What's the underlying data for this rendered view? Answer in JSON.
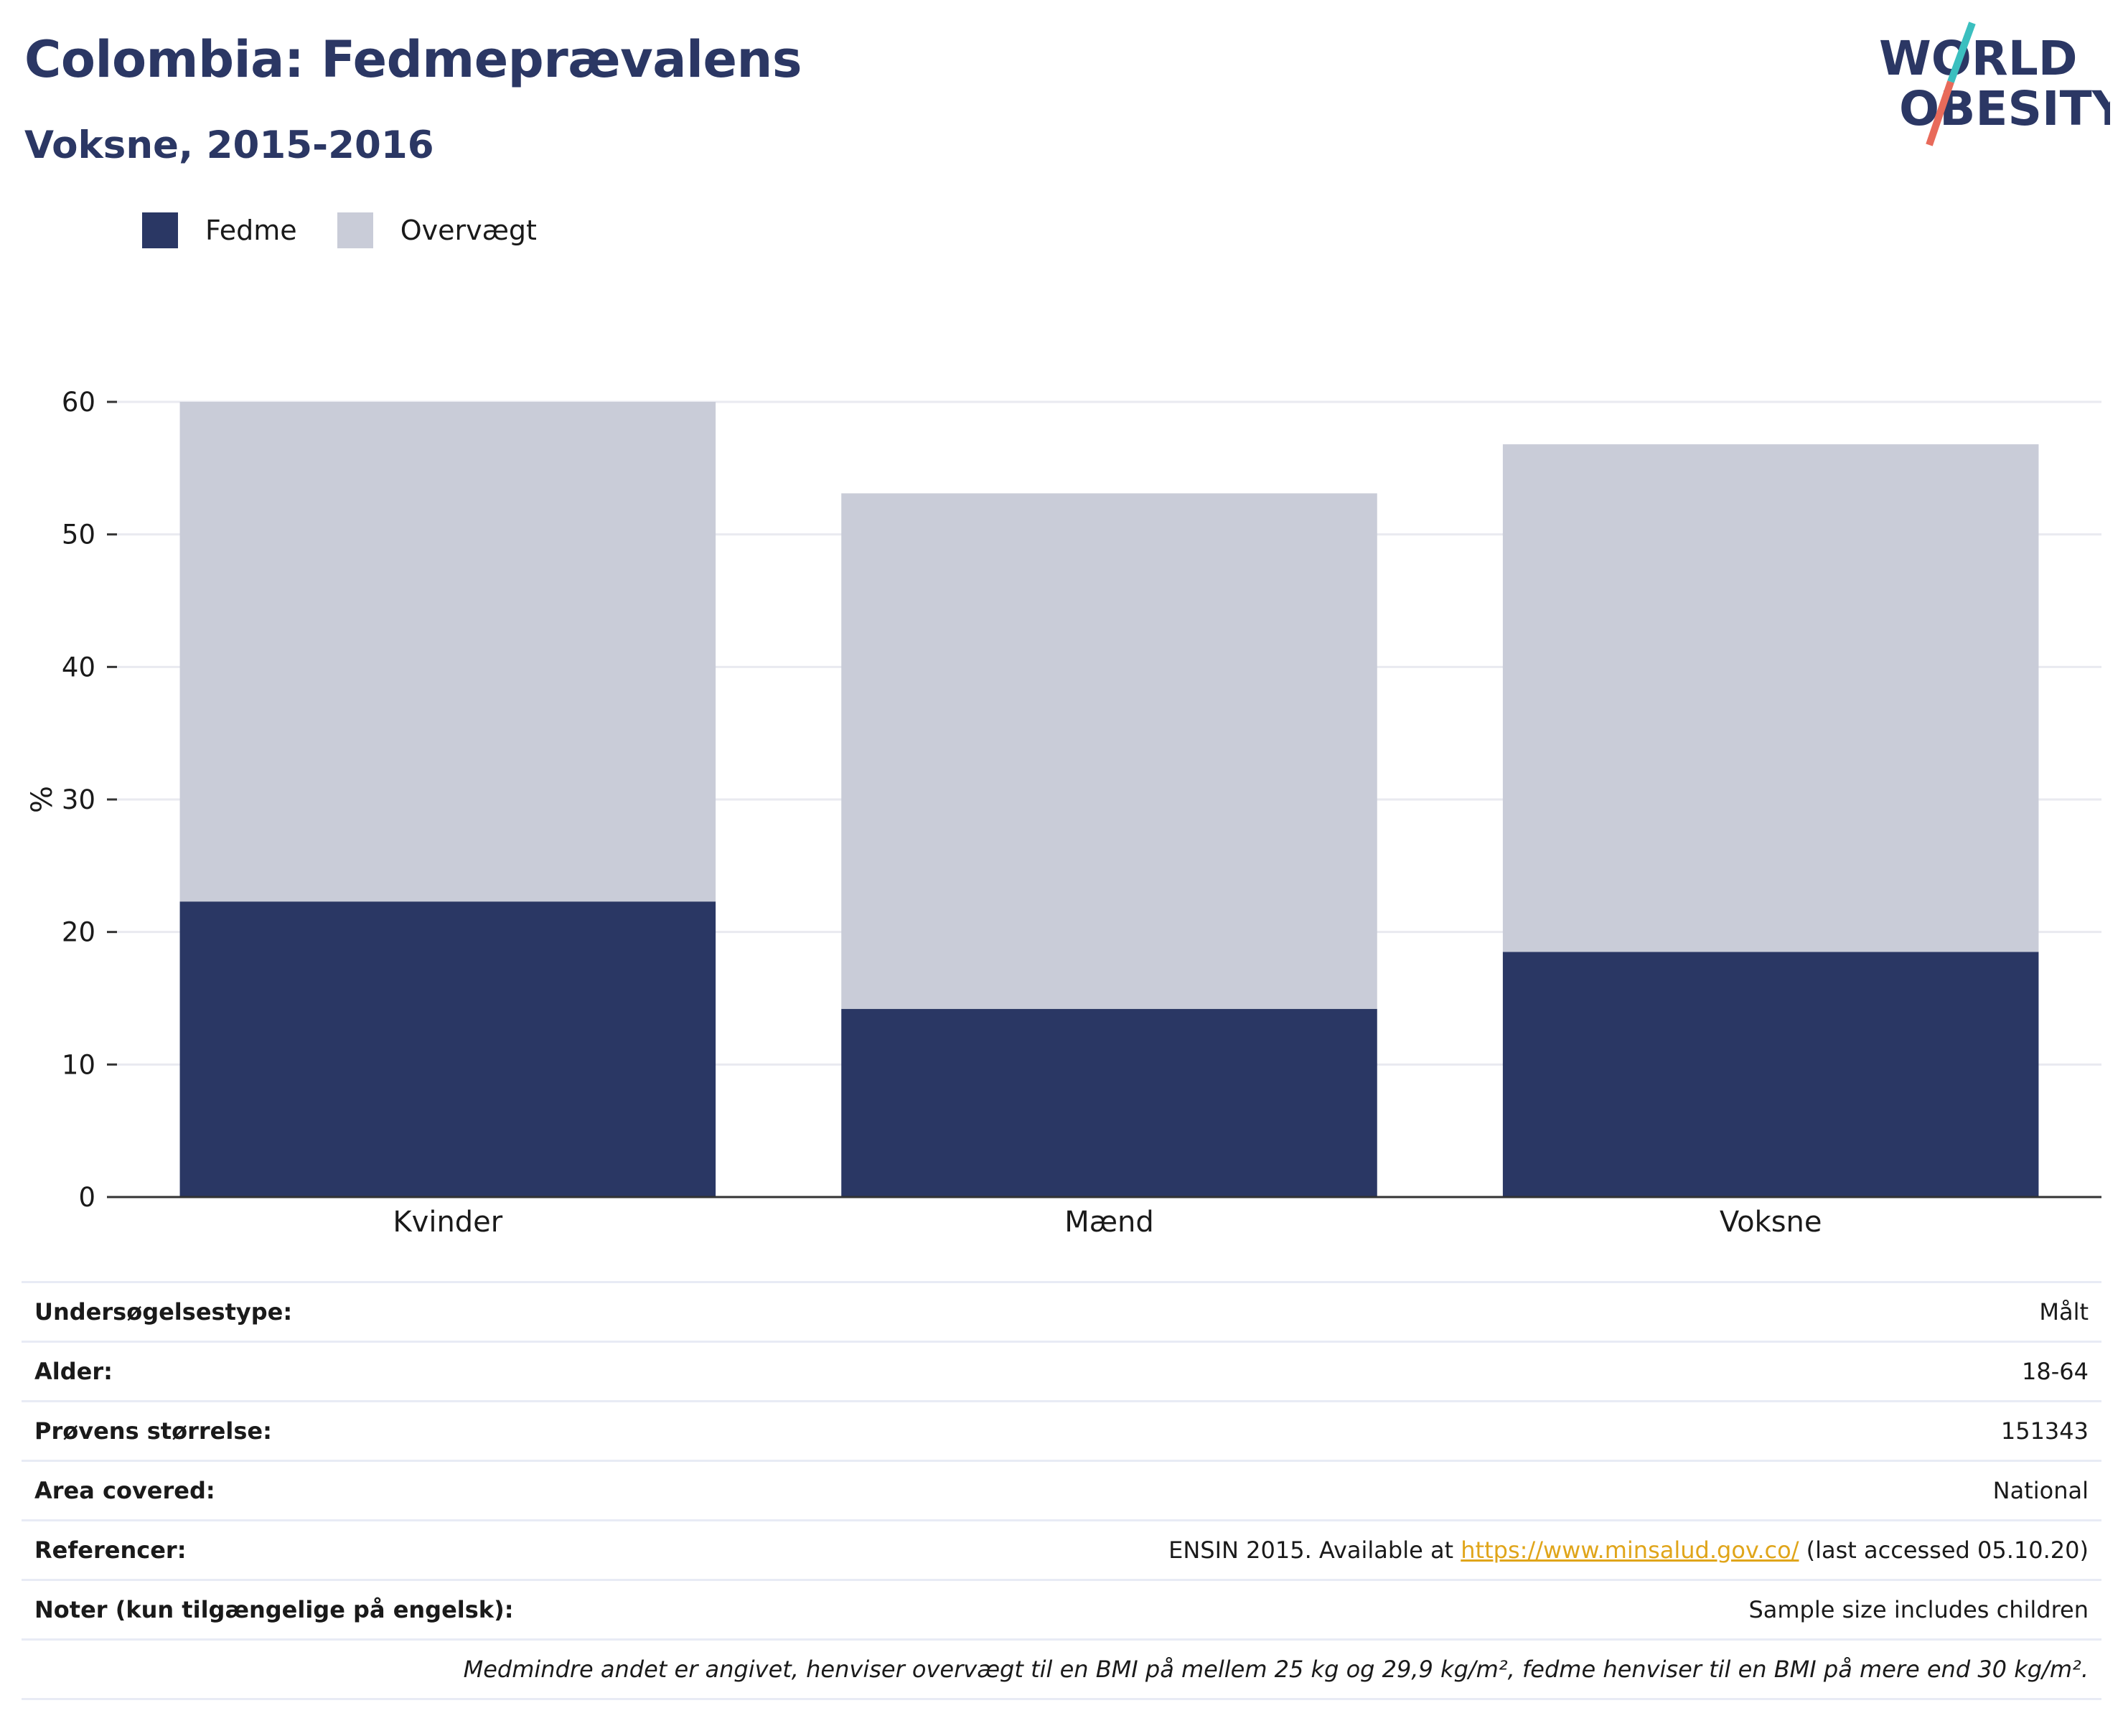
{
  "header": {
    "title": "Colombia: Fedmeprævalens",
    "subtitle": "Voksne, 2015-2016"
  },
  "logo": {
    "line1": "WORLD",
    "line2": "OBESITY",
    "text_color": "#2b3764",
    "slash_top_color": "#3bbfbf",
    "slash_bottom_color": "#e86a5a"
  },
  "colors": {
    "fedme": "#2a3764",
    "overvaegt": "#c9ccd8",
    "grid": "#e9eaf0",
    "axis": "#333333"
  },
  "chart_data": {
    "type": "bar",
    "stacked": true,
    "categories": [
      "Kvinder",
      "Mænd",
      "Voksne"
    ],
    "series": [
      {
        "name": "Fedme",
        "values": [
          22.3,
          14.2,
          18.5
        ]
      },
      {
        "name": "Overvægt",
        "values": [
          37.7,
          38.9,
          38.3
        ]
      }
    ],
    "ylabel": "%",
    "xlabel": "",
    "ylim": [
      0,
      60
    ],
    "yticks": [
      0,
      10,
      20,
      30,
      40,
      50,
      60
    ],
    "grid": true,
    "legend_position": "top-left"
  },
  "info": {
    "rows": [
      {
        "label": "Undersøgelsestype:",
        "value": "Målt"
      },
      {
        "label": "Alder:",
        "value": "18-64"
      },
      {
        "label": "Prøvens størrelse:",
        "value": "151343"
      },
      {
        "label": "Area covered:",
        "value": "National"
      }
    ],
    "references": {
      "label": "Referencer:",
      "prefix": "ENSIN 2015. Available at ",
      "link": "https://www.minsalud.gov.co/",
      "suffix": " (last accessed 05.10.20)"
    },
    "notes": {
      "label": "Noter (kun tilgængelige på engelsk):",
      "value": "Sample size includes children"
    },
    "footnote": "Medmindre andet er angivet, henviser overvægt til en BMI på mellem 25 kg og 29,9 kg/m², fedme henviser til en BMI på mere end 30 kg/m²."
  }
}
